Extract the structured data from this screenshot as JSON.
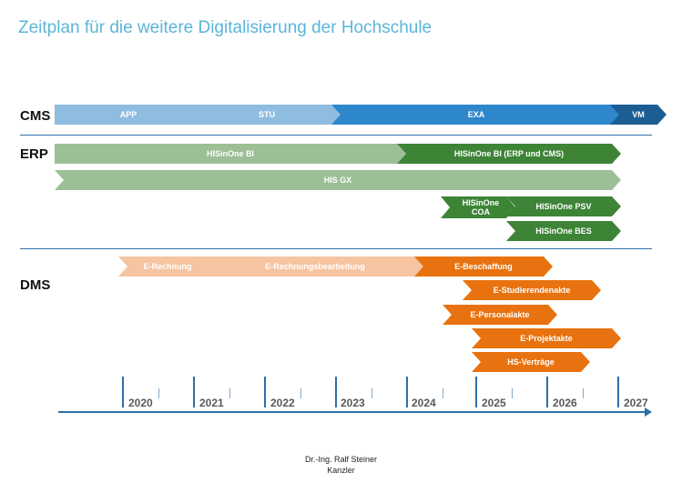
{
  "title": "Zeitplan für die weitere Digitalisierung der Hochschule",
  "rows": {
    "cms": "CMS",
    "erp": "ERP",
    "dms": "DMS"
  },
  "colors": {
    "title": "#5bb6d8",
    "cms_light": "#8fbde0",
    "cms_mid": "#2e86cb",
    "cms_dark": "#1c5e94",
    "erp_light": "#9cbf96",
    "erp_dark": "#3d8437",
    "dms_light": "#f6c4a0",
    "dms_dark": "#e8720f",
    "axis": "#2f6fa8"
  },
  "bars": {
    "cms_app": "APP",
    "cms_stu": "STU",
    "cms_exa": "EXA",
    "cms_vm": "VM",
    "erp_hisinone_bi": "HISinOne BI",
    "erp_hisinone_bi_erp_cms": "HISinOne BI (ERP und CMS)",
    "erp_his_gx": "HIS GX",
    "erp_hisinone_coa": "HISinOne\nCOA",
    "erp_hisinone_psv": "HISinOne PSV",
    "erp_hisinone_bes": "HISinOne BES",
    "dms_e_rechnung": "E-Rechnung",
    "dms_e_rechnungsbearbeitung": "E-Rechnungsbearbeitung",
    "dms_e_beschaffung": "E-Beschaffung",
    "dms_e_studierendenakte": "E-Studierendenakte",
    "dms_e_personalakte": "E-Personalakte",
    "dms_e_projektakte": "E-Projektakte",
    "dms_hs_vertraege": "HS-Verträge"
  },
  "years": [
    "2020",
    "2021",
    "2022",
    "2023",
    "2024",
    "2025",
    "2026",
    "2027"
  ],
  "footer": {
    "name": "Dr.-Ing. Ralf Steiner",
    "role": "Kanzler"
  }
}
